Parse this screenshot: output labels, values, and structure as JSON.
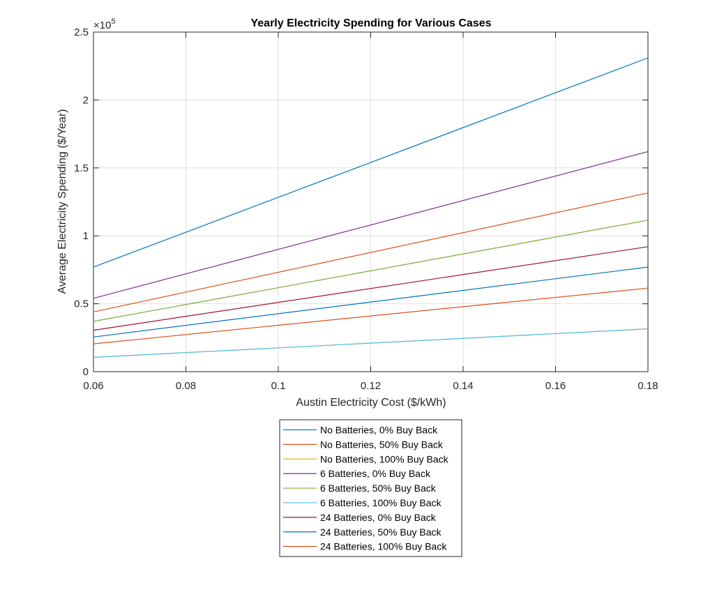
{
  "chart_data": {
    "type": "line",
    "title": "Yearly Electricity Spending for Various Cases",
    "xlabel": "Austin Electricity Cost ($/kWh)",
    "ylabel": "Average Electricity Spending ($/Year)",
    "xlim": [
      0.06,
      0.18
    ],
    "ylim": [
      0,
      250000
    ],
    "y_exponent_label": "×10",
    "y_exponent_power": "5",
    "x_ticks": [
      0.06,
      0.08,
      0.1,
      0.12,
      0.14,
      0.16,
      0.18
    ],
    "x_tick_labels": [
      "0.06",
      "0.08",
      "0.1",
      "0.12",
      "0.14",
      "0.16",
      "0.18"
    ],
    "y_ticks": [
      0,
      50000,
      100000,
      150000,
      200000,
      250000
    ],
    "y_tick_labels": [
      "0",
      "0.5",
      "1",
      "1.5",
      "2",
      "2.5"
    ],
    "grid": true,
    "legend_position": "below",
    "series": [
      {
        "name": "No Batteries, 0% Buy Back",
        "color": "#0072BD",
        "x": [
          0.06,
          0.18
        ],
        "y": [
          77000,
          231000
        ]
      },
      {
        "name": "No Batteries, 50% Buy Back",
        "color": "#D95319",
        "x": [
          0.06,
          0.18
        ],
        "y": [
          20500,
          61500
        ]
      },
      {
        "name": "No Batteries, 100% Buy Back",
        "color": "#EDB120",
        "x": [
          0.06,
          0.18
        ],
        "y": [
          10500,
          31500
        ]
      },
      {
        "name": "6 Batteries, 0% Buy Back",
        "color": "#7E2F8E",
        "x": [
          0.06,
          0.18
        ],
        "y": [
          54000,
          162000
        ]
      },
      {
        "name": "6 Batteries, 50% Buy Back",
        "color": "#77AC30",
        "x": [
          0.06,
          0.18
        ],
        "y": [
          37000,
          111500
        ]
      },
      {
        "name": "6 Batteries, 100% Buy Back",
        "color": "#4DBEEE",
        "x": [
          0.06,
          0.18
        ],
        "y": [
          10500,
          31500
        ]
      },
      {
        "name": "24 Batteries, 0% Buy Back",
        "color": "#A2142F",
        "x": [
          0.06,
          0.18
        ],
        "y": [
          30500,
          92000
        ]
      },
      {
        "name": "24 Batteries, 50% Buy Back",
        "color": "#0072BD",
        "x": [
          0.06,
          0.18
        ],
        "y": [
          25500,
          77000
        ]
      },
      {
        "name": "24 Batteries, 100% Buy Back",
        "color": "#D95319",
        "x": [
          0.06,
          0.18
        ],
        "y": [
          44000,
          131500
        ]
      }
    ]
  }
}
